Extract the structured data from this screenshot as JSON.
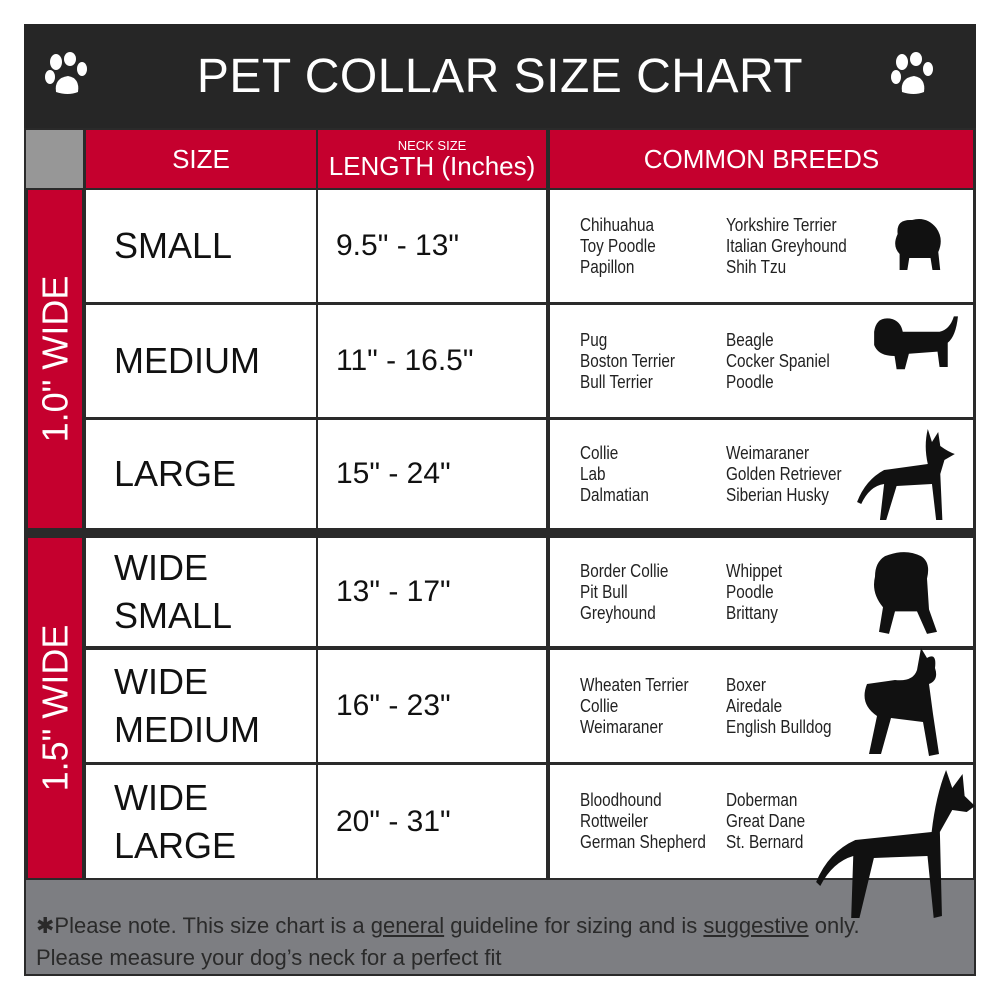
{
  "title": "PET COLLAR SIZE CHART",
  "icons": {
    "left": "paw-icon",
    "right": "paw-icon"
  },
  "colors": {
    "header_red": "#c5002e",
    "title_bar": "#262626",
    "footer_gray": "#7d7e82"
  },
  "headers": {
    "size": "SIZE",
    "length_small": "NECK SIZE",
    "length": "LENGTH (Inches)",
    "breeds": "COMMON BREEDS"
  },
  "groups": [
    {
      "label": "1.0\" WIDE"
    },
    {
      "label": "1.5\" WIDE"
    }
  ],
  "rows": [
    {
      "size": "SMALL",
      "length": "9.5\" - 13\"",
      "breeds_a": [
        "Chihuahua",
        "Toy Poodle",
        "Papillon"
      ],
      "breeds_b": [
        "Yorkshire Terrier",
        "Italian Greyhound",
        "Shih Tzu"
      ]
    },
    {
      "size": "MEDIUM",
      "length": "11\" - 16.5\"",
      "breeds_a": [
        "Pug",
        "Boston Terrier",
        "Bull Terrier"
      ],
      "breeds_b": [
        "Beagle",
        "Cocker Spaniel",
        "Poodle"
      ]
    },
    {
      "size": "LARGE",
      "length": "15\" - 24\"",
      "breeds_a": [
        "Collie",
        "Lab",
        "Dalmatian"
      ],
      "breeds_b": [
        "Weimaraner",
        "Golden Retriever",
        "Siberian Husky"
      ]
    },
    {
      "size_1": "WIDE",
      "size_2": "SMALL",
      "length": "13\" - 17\"",
      "breeds_a": [
        "Border Collie",
        "Pit Bull",
        "Greyhound"
      ],
      "breeds_b": [
        "Whippet",
        "Poodle",
        "Brittany"
      ]
    },
    {
      "size_1": "WIDE",
      "size_2": "MEDIUM",
      "length": "16\" - 23\"",
      "breeds_a": [
        "Wheaten Terrier",
        "Collie",
        "Weimaraner"
      ],
      "breeds_b": [
        "Boxer",
        "Airedale",
        "English Bulldog"
      ]
    },
    {
      "size_1": "WIDE",
      "size_2": "LARGE",
      "length": "20\" - 31\"",
      "breeds_a": [
        "Bloodhound",
        "Rottweiler",
        "German Shepherd"
      ],
      "breeds_b": [
        "Doberman",
        "Great Dane",
        "St. Bernard"
      ]
    }
  ],
  "footer": {
    "p1": "✱Please note. This size chart is a",
    "u1": "general",
    "p2": " guideline for sizing and is",
    "u2": "suggestive",
    "p3": " only.",
    "line2": "Please measure your dog’s neck for a perfect fit"
  }
}
